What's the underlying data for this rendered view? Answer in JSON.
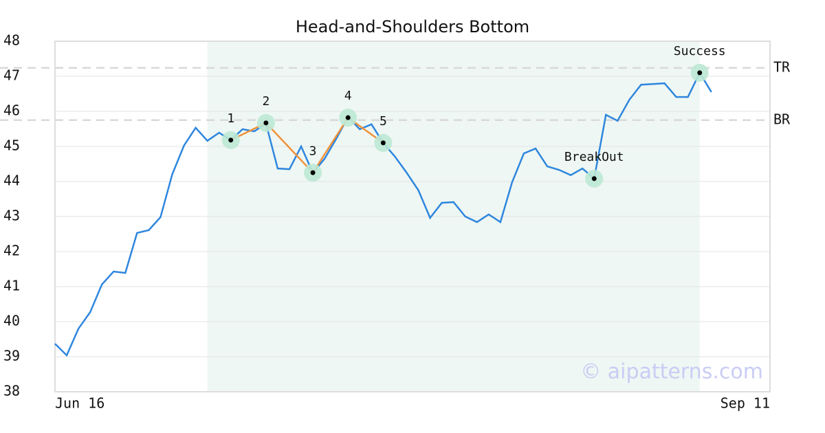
{
  "chart_data": {
    "type": "line",
    "title": "Head-and-Shoulders Bottom",
    "x": [
      0,
      1,
      2,
      3,
      4,
      5,
      6,
      7,
      8,
      9,
      10,
      11,
      12,
      13,
      14,
      15,
      16,
      17,
      18,
      19,
      20,
      21,
      22,
      23,
      24,
      25,
      26,
      27,
      28,
      29,
      30,
      31,
      32,
      33,
      34,
      35,
      36,
      37,
      38,
      39,
      40,
      41,
      42,
      43,
      44,
      45,
      46,
      47,
      48,
      49,
      50,
      51,
      52,
      53,
      54,
      55,
      56
    ],
    "values": [
      39.37,
      39.04,
      39.8,
      40.27,
      41.06,
      41.43,
      41.39,
      42.53,
      42.61,
      42.98,
      44.2,
      45.02,
      45.53,
      45.16,
      45.39,
      45.18,
      45.49,
      45.43,
      45.65,
      44.37,
      44.35,
      45.0,
      44.24,
      44.65,
      45.22,
      45.84,
      45.49,
      45.63,
      45.1,
      44.71,
      44.25,
      43.75,
      42.96,
      43.39,
      43.41,
      43.0,
      42.84,
      43.06,
      42.84,
      43.98,
      44.8,
      44.94,
      44.43,
      44.33,
      44.18,
      44.37,
      44.08,
      45.9,
      45.73,
      46.33,
      46.76,
      46.78,
      46.8,
      46.41,
      46.41,
      47.1,
      46.55
    ],
    "color": "#2e86de",
    "xlim": [
      0,
      61
    ],
    "xticks": [
      {
        "value": 0,
        "label": "Jun 16"
      },
      {
        "value": 61,
        "label": "Sep 11"
      }
    ],
    "ylim": [
      38,
      48
    ],
    "yticks": [
      38,
      39,
      40,
      41,
      42,
      43,
      44,
      45,
      46,
      47,
      48
    ],
    "grid": true,
    "highlight_x": [
      13,
      55
    ],
    "pattern": {
      "labels": [
        "1",
        "2",
        "3",
        "4",
        "5"
      ],
      "x": [
        15,
        18,
        22,
        25,
        28
      ],
      "values": [
        45.18,
        45.67,
        44.25,
        45.82,
        45.1
      ],
      "color": "#f0913a"
    },
    "markers": [
      {
        "label": "BreakOut",
        "x": 46,
        "value": 44.08
      },
      {
        "label": "Success",
        "x": 55,
        "value": 47.1
      }
    ],
    "hlines": [
      {
        "label": "TR",
        "value": 47.24
      },
      {
        "label": "BR",
        "value": 45.75
      }
    ],
    "watermark": "© aipatterns.com"
  }
}
